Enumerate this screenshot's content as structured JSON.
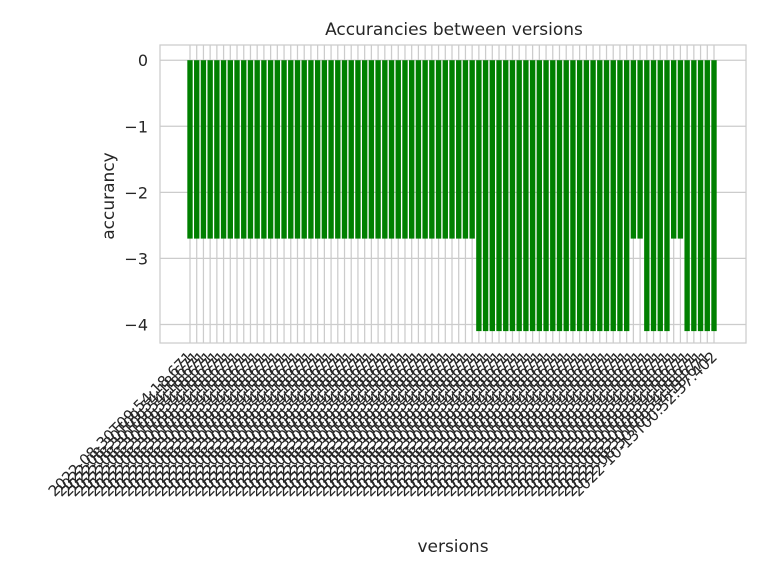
{
  "chart_data": {
    "type": "bar",
    "title": "Accurancies between versions",
    "xlabel": "versions",
    "ylabel": "accurancy",
    "ylim": [
      -4.28,
      0.23
    ],
    "yticks": [
      0,
      -1,
      -2,
      -3,
      -4
    ],
    "grid": true,
    "bar_color": "#008000",
    "grid_color": "#cccccc",
    "x_tick_label_rotation": "45 degrees, overlapping and largely illegible",
    "x_tick_labels_visible": [
      "2022-08-30T09:54:18.671",
      "2022-10-13T00:52:37.402"
    ],
    "values": [
      -2.7,
      -2.7,
      -2.7,
      -2.7,
      -2.7,
      -2.7,
      -2.7,
      -2.7,
      -2.7,
      -2.7,
      -2.7,
      -2.7,
      -2.7,
      -2.7,
      -2.7,
      -2.7,
      -2.7,
      -2.7,
      -2.7,
      -2.7,
      -2.7,
      -2.7,
      -2.7,
      -2.7,
      -2.7,
      -2.7,
      -2.7,
      -2.7,
      -2.7,
      -2.7,
      -2.7,
      -2.7,
      -2.7,
      -2.7,
      -2.7,
      -2.7,
      -2.7,
      -2.7,
      -2.7,
      -2.7,
      -2.7,
      -2.7,
      -2.7,
      -4.1,
      -4.1,
      -4.1,
      -4.1,
      -4.1,
      -4.1,
      -4.1,
      -4.1,
      -4.1,
      -4.1,
      -4.1,
      -4.1,
      -4.1,
      -4.1,
      -4.1,
      -4.1,
      -4.1,
      -4.1,
      -4.1,
      -4.1,
      -4.1,
      -4.1,
      -4.1,
      -2.7,
      -2.7,
      -4.1,
      -4.1,
      -4.1,
      -4.1,
      -2.7,
      -2.7,
      -4.1,
      -4.1,
      -4.1,
      -4.1,
      -4.1
    ]
  }
}
